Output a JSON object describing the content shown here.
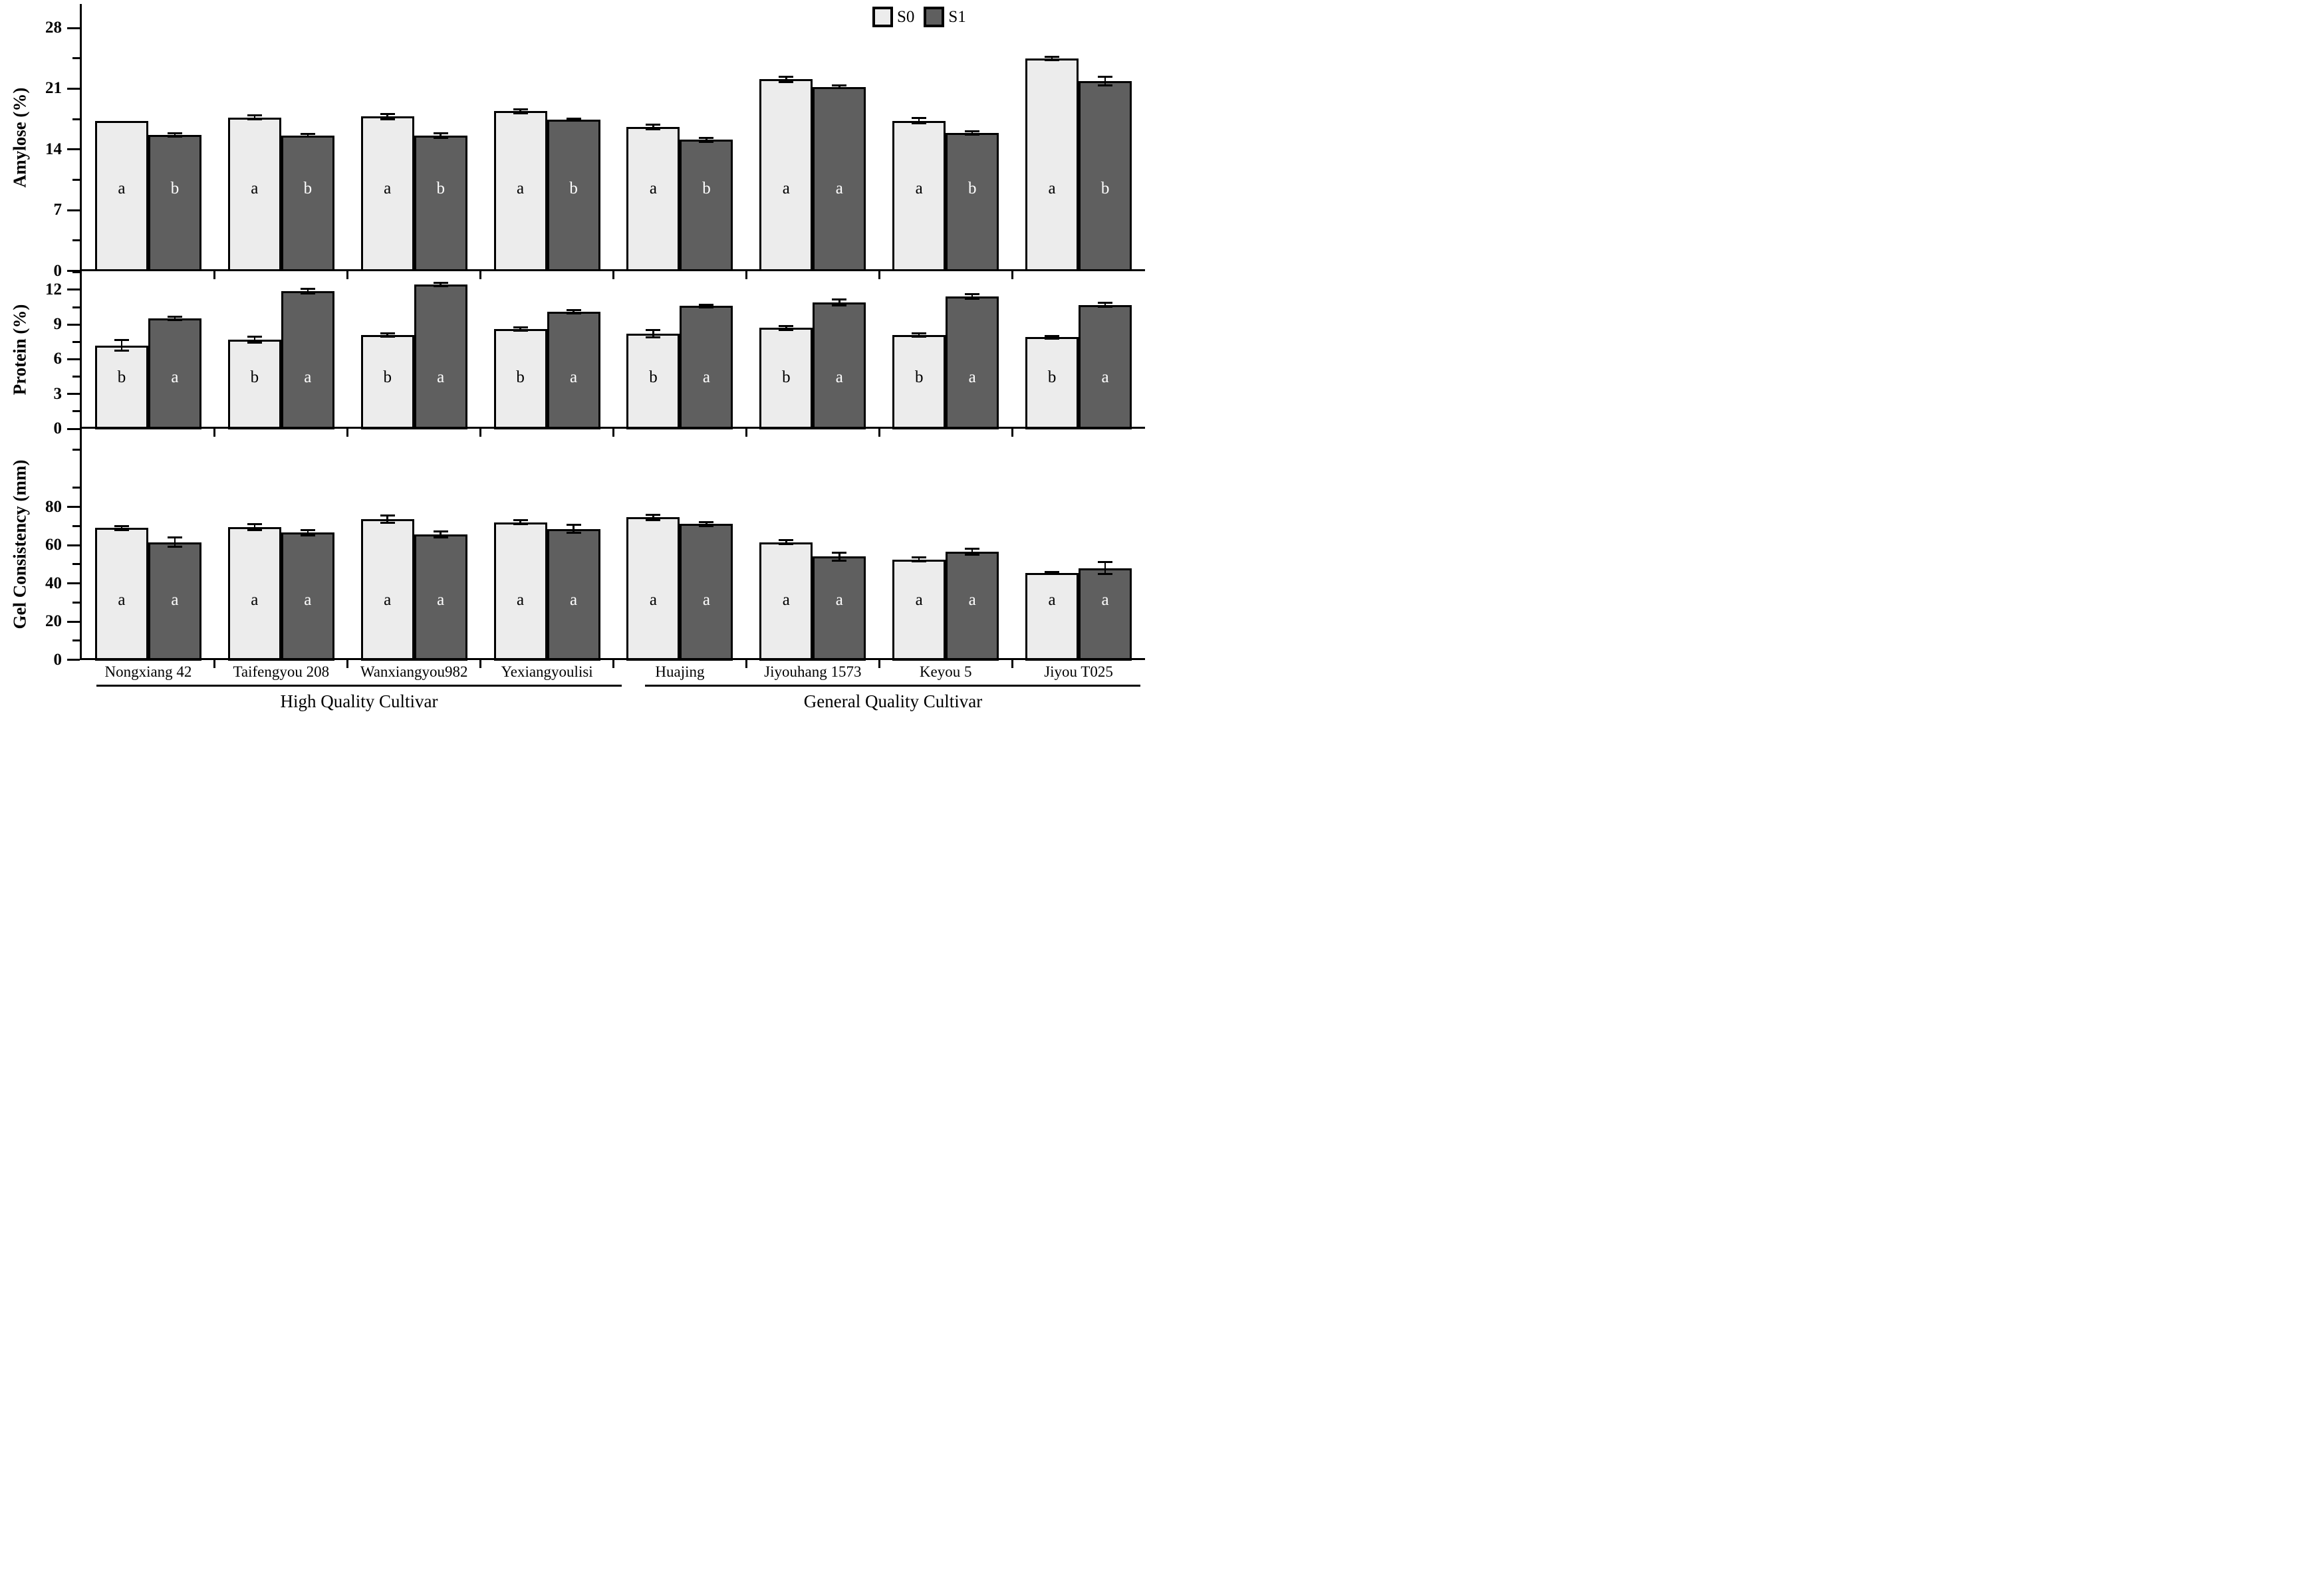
{
  "figure": {
    "background": "#ffffff",
    "legend": {
      "entries": [
        "S0",
        "S1"
      ],
      "position": "top-right"
    }
  },
  "chart_data": {
    "type": "bar",
    "grouped": true,
    "grid": false,
    "categories": [
      "Nongxiang 42",
      "Taifengyou 208",
      "Wanxiangyou982",
      "Yexiangyoulisi",
      "Huajing",
      "Jiyouhang 1573",
      "Keyou 5",
      "Jiyou T025"
    ],
    "cultivar_groups": [
      {
        "label": "High Quality Cultivar",
        "span": [
          0,
          3
        ]
      },
      {
        "label": "General Quality Cultivar",
        "span": [
          4,
          7
        ]
      }
    ],
    "series_names": [
      "S0",
      "S1"
    ],
    "colors": {
      "s0_fill": "#ececec",
      "s1_fill": "#5f5f5f",
      "axis": "#000000",
      "letter_on_s0": "#000000",
      "letter_on_s1": "#ffffff"
    },
    "panels": [
      {
        "id": "amylose",
        "ylabel": "Amylose (%)",
        "ylim": [
          0,
          28
        ],
        "yticks": [
          0,
          7,
          14,
          21,
          28
        ],
        "minor_tick_step": 3.5,
        "series": [
          {
            "name": "S0",
            "values": [
              17.3,
              17.7,
              17.8,
              18.4,
              16.6,
              22.1,
              17.3,
              24.5
            ],
            "errors": [
              0,
              0.25,
              0.3,
              0.25,
              0.25,
              0.3,
              0.3,
              0.2
            ],
            "letters": [
              "a",
              "a",
              "a",
              "a",
              "a",
              "a",
              "a",
              "a"
            ]
          },
          {
            "name": "S1",
            "values": [
              15.7,
              15.6,
              15.6,
              17.4,
              15.1,
              21.2,
              15.9,
              21.9
            ],
            "errors": [
              0.2,
              0.15,
              0.25,
              0.12,
              0.2,
              0.15,
              0.2,
              0.5
            ],
            "letters": [
              "b",
              "b",
              "b",
              "b",
              "b",
              "a",
              "b",
              "b"
            ]
          }
        ]
      },
      {
        "id": "protein",
        "ylabel": "Protein (%)",
        "ylim": [
          0,
          12
        ],
        "yticks": [
          0,
          3,
          6,
          9,
          12
        ],
        "minor_tick_step": 1.5,
        "series": [
          {
            "name": "S0",
            "values": [
              7.2,
              7.7,
              8.1,
              8.6,
              8.2,
              8.7,
              8.1,
              7.9
            ],
            "errors": [
              0.45,
              0.25,
              0.15,
              0.15,
              0.3,
              0.15,
              0.15,
              0.1
            ],
            "letters": [
              "b",
              "b",
              "b",
              "b",
              "b",
              "b",
              "b",
              "b"
            ]
          },
          {
            "name": "S1",
            "values": [
              9.55,
              11.9,
              12.45,
              10.1,
              10.6,
              10.9,
              11.4,
              10.7
            ],
            "errors": [
              0.15,
              0.2,
              0.15,
              0.15,
              0.1,
              0.25,
              0.2,
              0.15
            ],
            "letters": [
              "a",
              "a",
              "a",
              "a",
              "a",
              "a",
              "a",
              "a"
            ]
          }
        ]
      },
      {
        "id": "gel-consistency",
        "ylabel": "Gel Consistency (mm)",
        "ylim": [
          0,
          80
        ],
        "yticks": [
          0,
          20,
          40,
          60,
          80
        ],
        "minor_tick_step": 10,
        "series": [
          {
            "name": "S0",
            "values": [
              69,
              69.5,
              73.5,
              72,
              74.5,
              61.5,
              52.5,
              45.5
            ],
            "errors": [
              1,
              1.5,
              2,
              1,
              1.5,
              1,
              1,
              0.5
            ],
            "letters": [
              "a",
              "a",
              "a",
              "a",
              "a",
              "a",
              "a",
              "a"
            ]
          },
          {
            "name": "S1",
            "values": [
              61.5,
              66.5,
              65.5,
              68.5,
              71,
              54,
              56.5,
              48
            ],
            "errors": [
              2.5,
              1.5,
              1.5,
              2,
              1,
              2,
              1.5,
              3
            ],
            "letters": [
              "a",
              "a",
              "a",
              "a",
              "a",
              "a",
              "a",
              "a"
            ]
          }
        ]
      }
    ]
  }
}
